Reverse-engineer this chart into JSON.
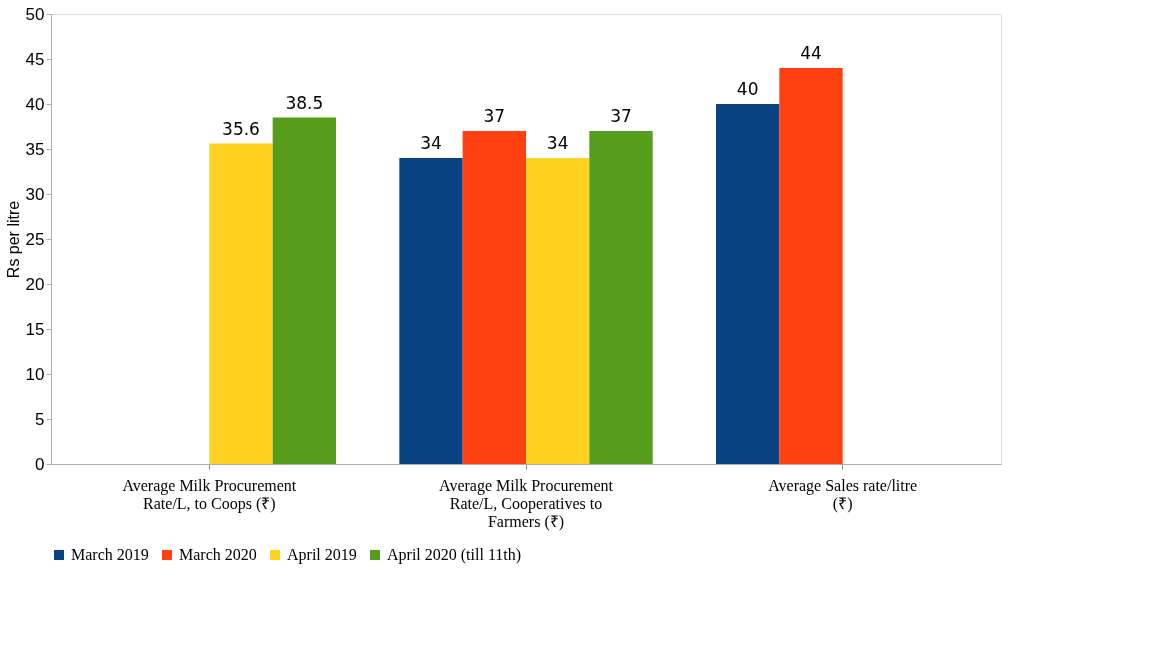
{
  "chart_data": {
    "type": "bar",
    "ylabel": "Rs per litre",
    "categories": [
      "Average Milk Procurement Rate/L, to Coops (₹)",
      "Average Milk Procurement Rate/L, Cooperatives to Farmers (₹)",
      "Average Sales rate/litre (₹)"
    ],
    "series": [
      {
        "name": "March 2019",
        "color": "#0a4383",
        "values": [
          null,
          34,
          40
        ]
      },
      {
        "name": "March 2020",
        "color": "#ff4111",
        "values": [
          null,
          37,
          44
        ]
      },
      {
        "name": "April 2019",
        "color": "#ffd320",
        "values": [
          35.6,
          34,
          null
        ]
      },
      {
        "name": "April 2020 (till 11th)",
        "color": "#579d1c",
        "values": [
          38.5,
          37,
          null
        ]
      }
    ],
    "ylim": [
      0,
      50
    ],
    "yticks": [
      0,
      5,
      10,
      15,
      20,
      25,
      30,
      35,
      40,
      45,
      50
    ],
    "grid": false,
    "legend": "bottom",
    "data_labels": true
  }
}
